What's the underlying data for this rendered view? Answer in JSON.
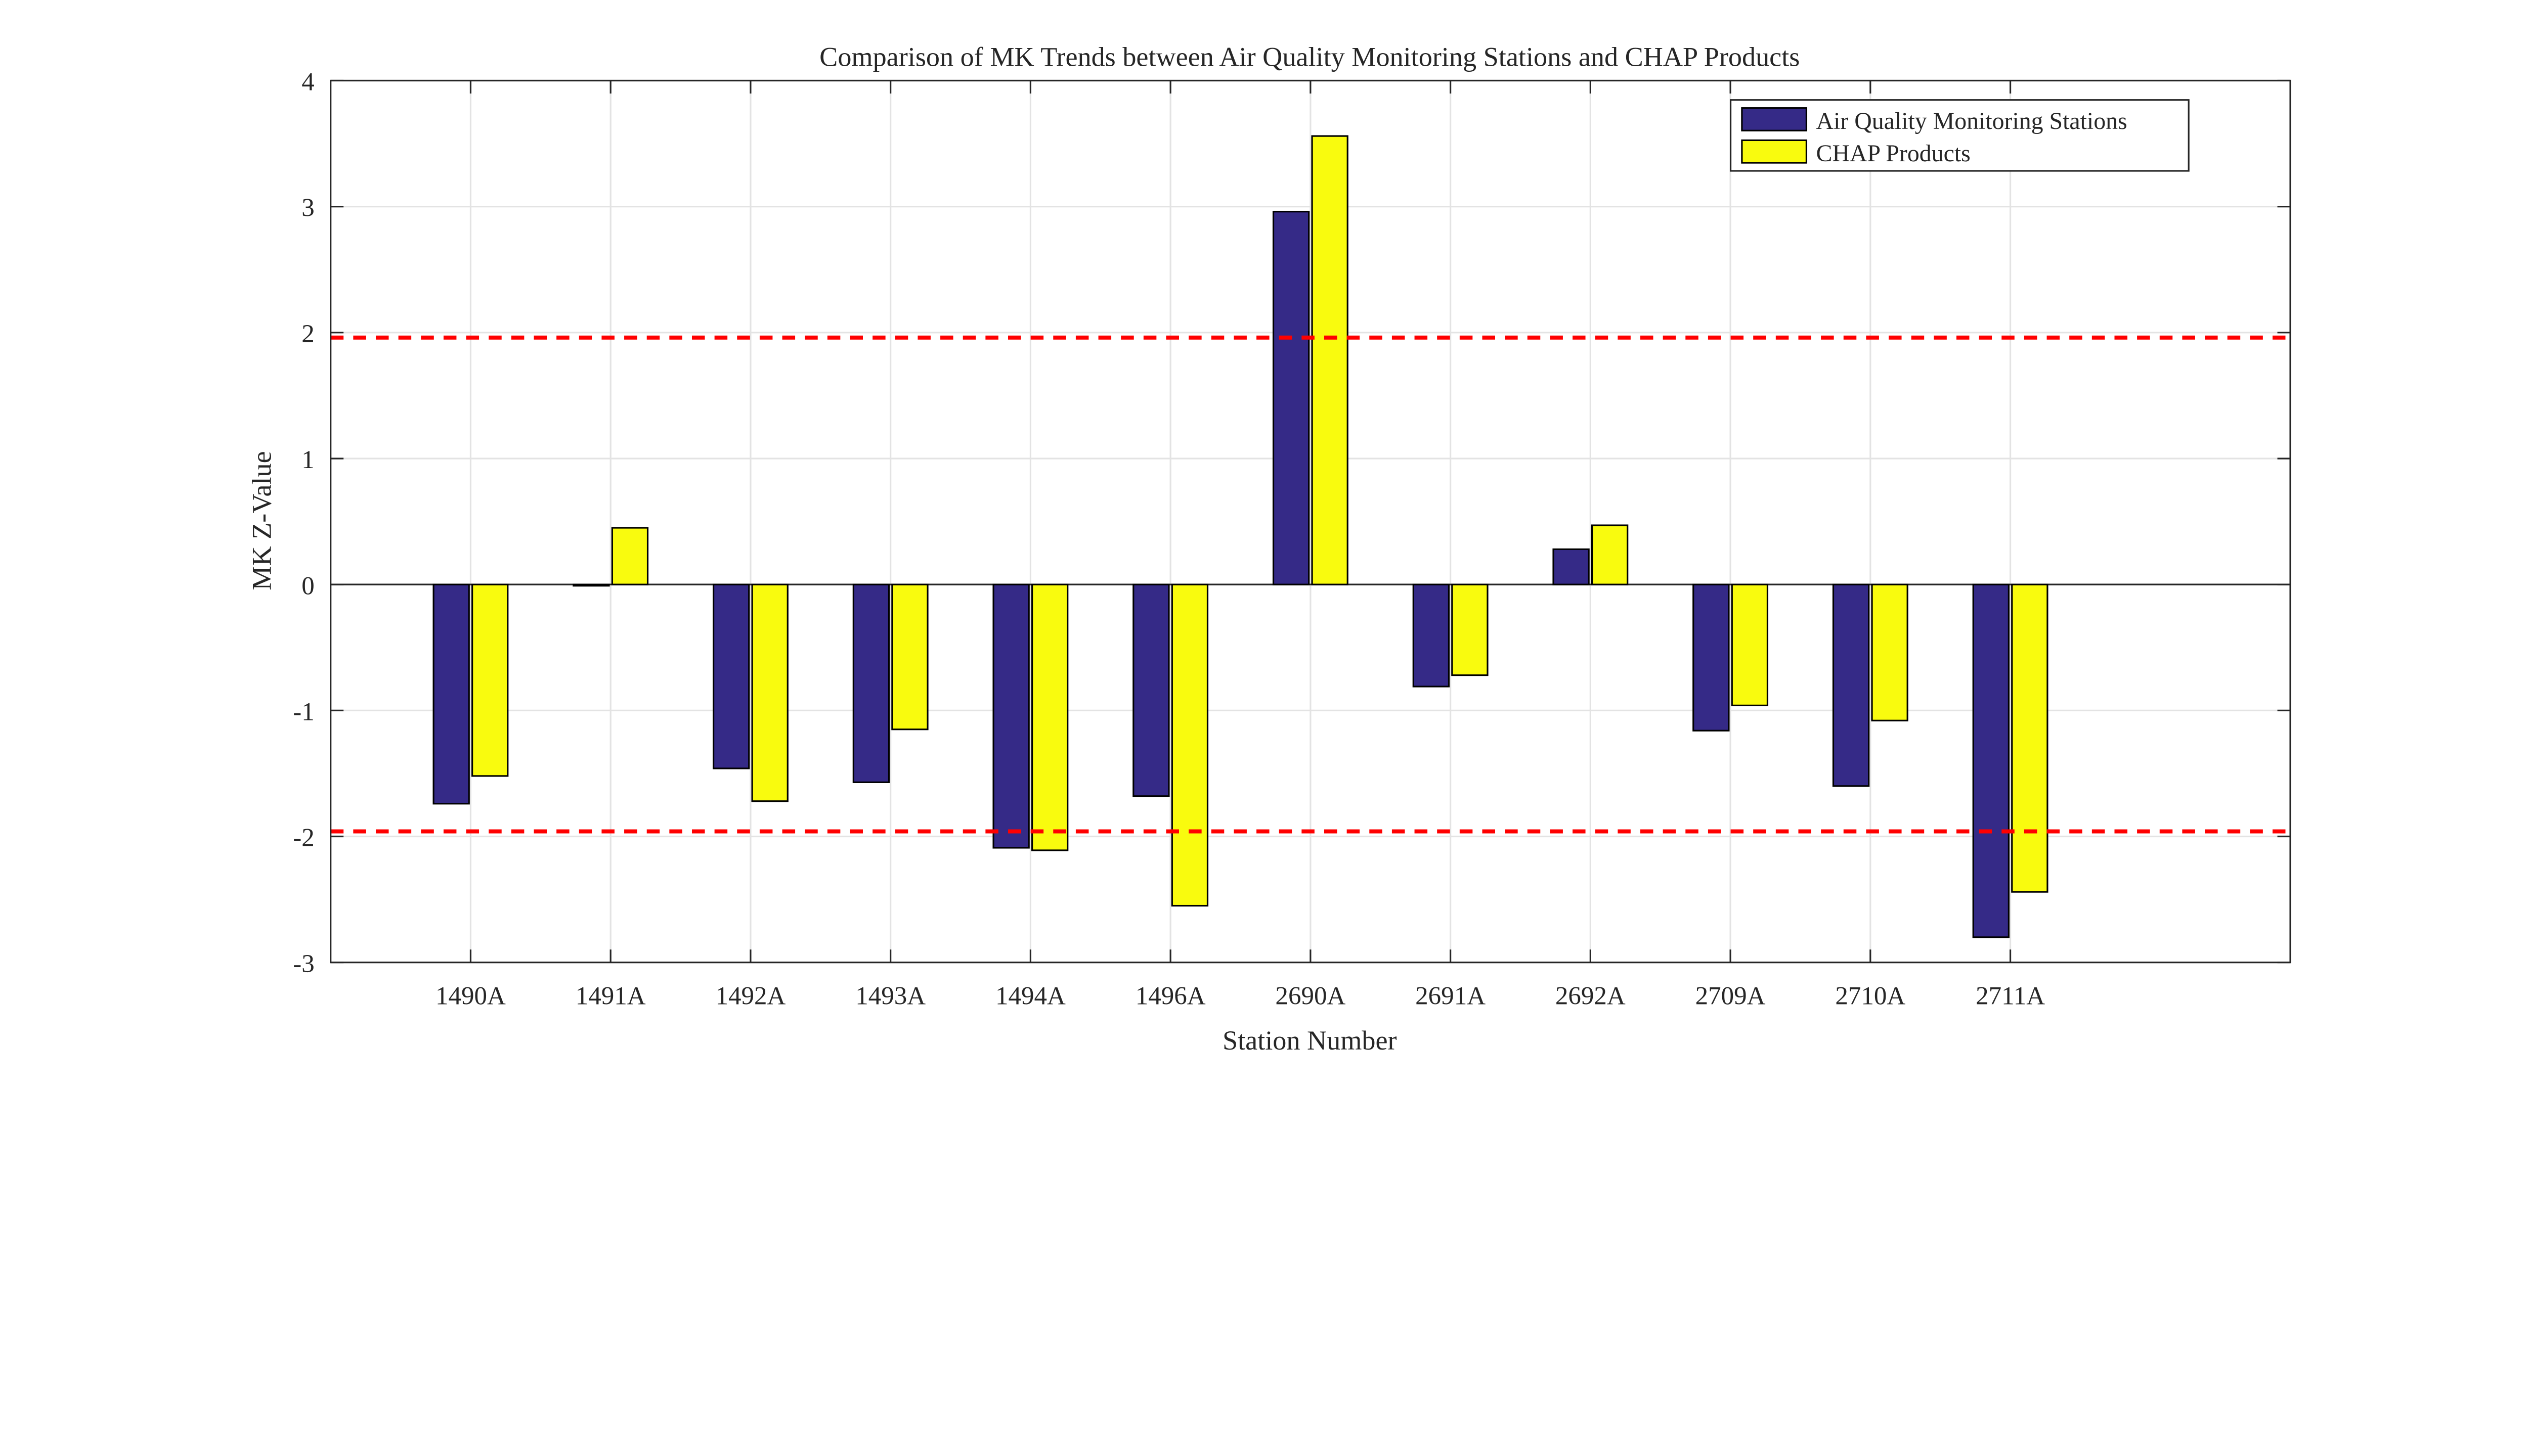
{
  "chart_data": {
    "type": "bar",
    "title": "Comparison of MK Trends between Air Quality Monitoring Stations and CHAP Products",
    "xlabel": "Station Number",
    "ylabel": "MK Z-Value",
    "categories": [
      "1490A",
      "1491A",
      "1492A",
      "1493A",
      "1494A",
      "1496A",
      "2690A",
      "2691A",
      "2692A",
      "2709A",
      "2710A",
      "2711A"
    ],
    "series": [
      {
        "name": "Air Quality Monitoring Stations",
        "color": "#352a87",
        "values": [
          -1.74,
          -0.01,
          -1.46,
          -1.57,
          -2.09,
          -1.68,
          2.96,
          -0.81,
          0.28,
          -1.16,
          -1.6,
          -2.8
        ]
      },
      {
        "name": "CHAP Products",
        "color": "#f9fb0e",
        "values": [
          -1.52,
          0.45,
          -1.72,
          -1.15,
          -2.11,
          -2.55,
          3.56,
          -0.72,
          0.47,
          -0.96,
          -1.08,
          -2.44
        ]
      }
    ],
    "ylim": [
      -3,
      4
    ],
    "xlim": [
      0,
      14
    ],
    "yticks": [
      -3,
      -2,
      -1,
      0,
      1,
      2,
      3,
      4
    ],
    "reference_lines": [
      {
        "y": 1.96,
        "style": "dashed",
        "color": "#ff0000"
      },
      {
        "y": -1.96,
        "style": "dashed",
        "color": "#ff0000"
      }
    ],
    "grid": true,
    "legend_position": "top-right"
  }
}
